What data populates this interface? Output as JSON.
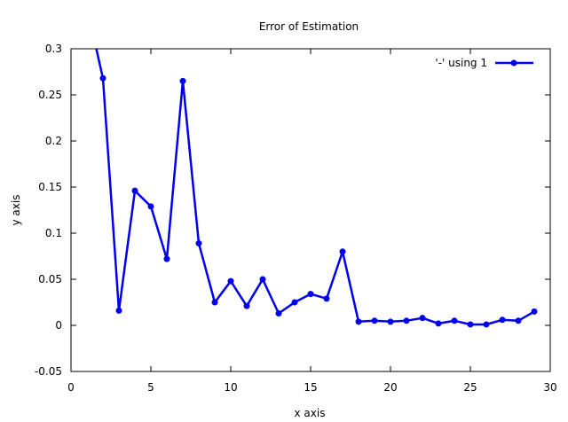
{
  "chart_data": {
    "type": "line",
    "title": "Error of Estimation",
    "xlabel": "x axis",
    "ylabel": "y axis",
    "xlim": [
      0,
      30
    ],
    "ylim": [
      -0.05,
      0.3
    ],
    "xticks": [
      0,
      5,
      10,
      15,
      20,
      25,
      30
    ],
    "yticks": [
      -0.05,
      0,
      0.05,
      0.1,
      0.15,
      0.2,
      0.25,
      0.3
    ],
    "grid": false,
    "legend_position": "top-right",
    "series": [
      {
        "name": "'-' using 1",
        "color": "#0000ee",
        "marker": "circle",
        "x": [
          1,
          2,
          3,
          4,
          5,
          6,
          7,
          8,
          9,
          10,
          11,
          12,
          13,
          14,
          15,
          16,
          17,
          18,
          19,
          20,
          21,
          22,
          23,
          24,
          25,
          26,
          27,
          28,
          29
        ],
        "y": [
          0.345,
          0.268,
          0.016,
          0.146,
          0.129,
          0.072,
          0.265,
          0.089,
          0.025,
          0.048,
          0.021,
          0.05,
          0.013,
          0.025,
          0.034,
          0.029,
          0.08,
          0.004,
          0.005,
          0.004,
          0.005,
          0.008,
          0.002,
          0.005,
          0.001,
          0.001,
          0.006,
          0.005,
          0.015
        ]
      }
    ]
  }
}
